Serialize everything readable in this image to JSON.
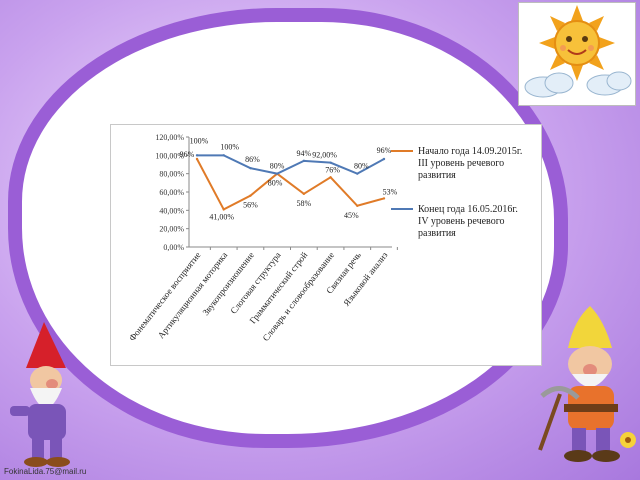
{
  "credit": "FokinaLida.75@mail.ru",
  "chart_data": {
    "type": "line",
    "categories": [
      "Фонематическое восприятие",
      "Артикуляционная моторика",
      "Звукопроизношение",
      "Слоговая структура",
      "Грамматический строй",
      "Словарь и словообразование",
      "Связная речь",
      "Языковой анализ"
    ],
    "series": [
      {
        "name": "Начало года 14.09.2015г. III уровень речевого развития",
        "color": "#e07b28",
        "values": [
          96,
          41,
          56,
          80,
          58,
          76,
          45,
          53
        ],
        "labels": [
          "96%",
          "41,00%",
          "56%",
          "80%",
          "58%",
          "76%",
          "45%",
          "53%"
        ]
      },
      {
        "name": "Конец года 16.05.2016г. IV уровень речевого развития",
        "color": "#4f79b5",
        "values": [
          100,
          100,
          86,
          80,
          94,
          92,
          80,
          96
        ],
        "labels": [
          "100%",
          "100%",
          "86%",
          "80%",
          "94%",
          "92,00%",
          "80%",
          "96%"
        ]
      }
    ],
    "ylim": [
      0,
      120
    ],
    "yticks": [
      "0,00%",
      "20,00%",
      "40,00%",
      "60,00%",
      "80,00%",
      "100,00%",
      "120,00%"
    ],
    "legend": {
      "position": "right",
      "entries": [
        [
          "Начало года 14.09.2015г.",
          "III уровень речевого",
          "развития"
        ],
        [
          "Конец года 16.05.2016г.",
          "IV уровень речевого",
          "развития"
        ]
      ]
    },
    "grid": false
  }
}
